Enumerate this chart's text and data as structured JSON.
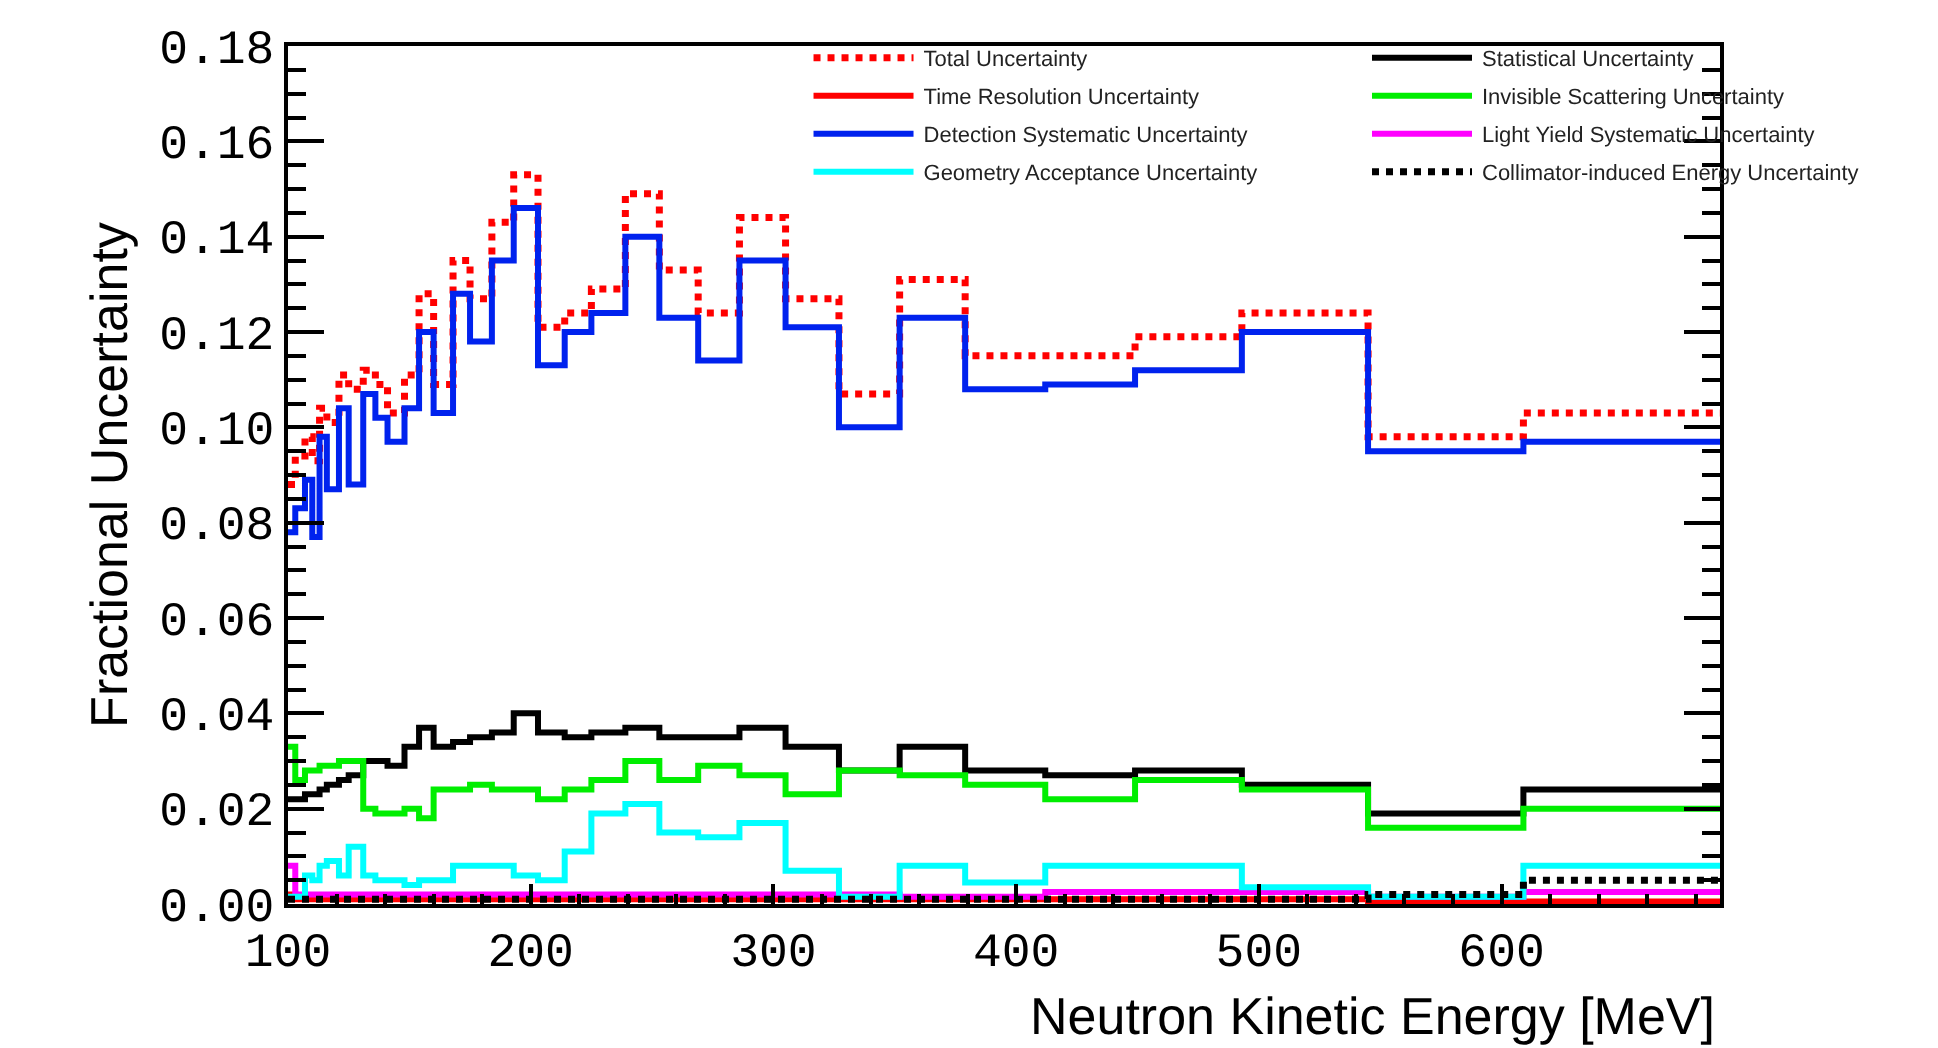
{
  "chart_data": {
    "type": "step",
    "xlabel": "Neutron Kinetic Energy [MeV]",
    "ylabel": "Fractional Uncertainty",
    "x": [
      100,
      103,
      107,
      110,
      113,
      116,
      121,
      125,
      131,
      136,
      141,
      148,
      154,
      160,
      168,
      175,
      184,
      193,
      203,
      214,
      225,
      239,
      253,
      269,
      286,
      305,
      327,
      352,
      379,
      412,
      449,
      493,
      545,
      609,
      690
    ],
    "xlim": [
      100,
      690
    ],
    "xticks": [
      100,
      200,
      300,
      400,
      500,
      600
    ],
    "ylim": [
      0,
      0.18
    ],
    "yticks": [
      {
        "value": 0,
        "label": "0.00"
      },
      {
        "value": 0.02,
        "label": "0.02"
      },
      {
        "value": 0.04,
        "label": "0.04"
      },
      {
        "value": 0.06,
        "label": "0.06"
      },
      {
        "value": 0.08,
        "label": "0.08"
      },
      {
        "value": 0.1,
        "label": "0.10"
      },
      {
        "value": 0.12,
        "label": "0.12"
      },
      {
        "value": 0.14,
        "label": "0.14"
      },
      {
        "value": 0.16,
        "label": "0.16"
      },
      {
        "value": 0.18,
        "label": "0.18"
      }
    ],
    "legend": "top right",
    "marker": "none",
    "series": [
      {
        "name": "Total Uncertainty",
        "color": "#ff0000",
        "line_style": "dotted",
        "values": [
          0.088,
          0.094,
          0.098,
          0.093,
          0.104,
          0.101,
          0.111,
          0.108,
          0.112,
          0.109,
          0.103,
          0.111,
          0.128,
          0.109,
          0.135,
          0.127,
          0.143,
          0.153,
          0.121,
          0.124,
          0.129,
          0.149,
          0.133,
          0.124,
          0.144,
          0.127,
          0.107,
          0.131,
          0.115,
          0.115,
          0.119,
          0.124,
          0.098,
          0.103,
          0.103
        ]
      },
      {
        "name": "Statistical Uncertainty",
        "color": "#000000",
        "line_style": "solid",
        "values": [
          0.022,
          0.022,
          0.023,
          0.023,
          0.024,
          0.025,
          0.026,
          0.027,
          0.03,
          0.03,
          0.029,
          0.033,
          0.037,
          0.033,
          0.034,
          0.035,
          0.036,
          0.04,
          0.036,
          0.035,
          0.036,
          0.037,
          0.035,
          0.035,
          0.037,
          0.033,
          0.028,
          0.033,
          0.028,
          0.027,
          0.028,
          0.025,
          0.019,
          0.024,
          0.024
        ]
      },
      {
        "name": "Time Resolution Uncertainty",
        "color": "#ff0000",
        "line_style": "solid",
        "values": [
          0.002,
          0.001,
          0.001,
          0.001,
          0.001,
          0.001,
          0.001,
          0.001,
          0.001,
          0.001,
          0.001,
          0.001,
          0.001,
          0.001,
          0.001,
          0.001,
          0.001,
          0.001,
          0.001,
          0.001,
          0.001,
          0.001,
          0.001,
          0.001,
          0.001,
          0.001,
          0.001,
          0.001,
          0.001,
          0.001,
          0.001,
          0.001,
          0.0005,
          0.0005,
          0.0005
        ]
      },
      {
        "name": "Invisible Scattering Uncertainty",
        "color": "#00ee00",
        "line_style": "solid",
        "values": [
          0.033,
          0.026,
          0.028,
          0.028,
          0.029,
          0.029,
          0.03,
          0.03,
          0.02,
          0.019,
          0.019,
          0.02,
          0.018,
          0.024,
          0.024,
          0.025,
          0.024,
          0.024,
          0.022,
          0.024,
          0.026,
          0.03,
          0.026,
          0.029,
          0.027,
          0.023,
          0.028,
          0.027,
          0.025,
          0.022,
          0.026,
          0.024,
          0.016,
          0.02,
          0.02
        ]
      },
      {
        "name": "Detection Systematic Uncertainty",
        "color": "#0022ee",
        "line_style": "solid",
        "values": [
          0.078,
          0.083,
          0.089,
          0.077,
          0.098,
          0.087,
          0.104,
          0.088,
          0.107,
          0.102,
          0.097,
          0.104,
          0.12,
          0.103,
          0.128,
          0.118,
          0.135,
          0.146,
          0.113,
          0.12,
          0.124,
          0.14,
          0.123,
          0.114,
          0.135,
          0.121,
          0.1,
          0.123,
          0.108,
          0.109,
          0.112,
          0.12,
          0.095,
          0.097,
          0.097
        ]
      },
      {
        "name": "Light Yield Systematic Uncertainty",
        "color": "#ff00ff",
        "line_style": "solid",
        "values": [
          0.008,
          0.002,
          0.002,
          0.002,
          0.002,
          0.002,
          0.002,
          0.002,
          0.002,
          0.002,
          0.002,
          0.002,
          0.002,
          0.002,
          0.002,
          0.002,
          0.002,
          0.002,
          0.002,
          0.002,
          0.002,
          0.002,
          0.002,
          0.002,
          0.002,
          0.002,
          0.002,
          0.0015,
          0.0015,
          0.0025,
          0.0025,
          0.0025,
          0.0015,
          0.0025,
          0.0025
        ]
      },
      {
        "name": "Geometry Acceptance Uncertainty",
        "color": "#00ffff",
        "line_style": "solid",
        "values": [
          0.0015,
          0.0015,
          0.006,
          0.005,
          0.008,
          0.009,
          0.006,
          0.012,
          0.006,
          0.005,
          0.005,
          0.004,
          0.005,
          0.005,
          0.008,
          0.008,
          0.008,
          0.006,
          0.005,
          0.011,
          0.019,
          0.021,
          0.015,
          0.014,
          0.017,
          0.007,
          0.0015,
          0.008,
          0.0045,
          0.008,
          0.008,
          0.0035,
          0.0015,
          0.008,
          0.008
        ]
      },
      {
        "name": "Collimator-induced Energy Uncertainty",
        "color": "#000000",
        "line_style": "dotted",
        "values": [
          0.001,
          0.001,
          0.001,
          0.001,
          0.001,
          0.001,
          0.001,
          0.001,
          0.001,
          0.001,
          0.001,
          0.001,
          0.001,
          0.001,
          0.001,
          0.001,
          0.001,
          0.001,
          0.001,
          0.001,
          0.001,
          0.001,
          0.001,
          0.001,
          0.001,
          0.001,
          0.001,
          0.001,
          0.001,
          0.001,
          0.001,
          0.001,
          0.002,
          0.005,
          0.005
        ]
      }
    ]
  }
}
